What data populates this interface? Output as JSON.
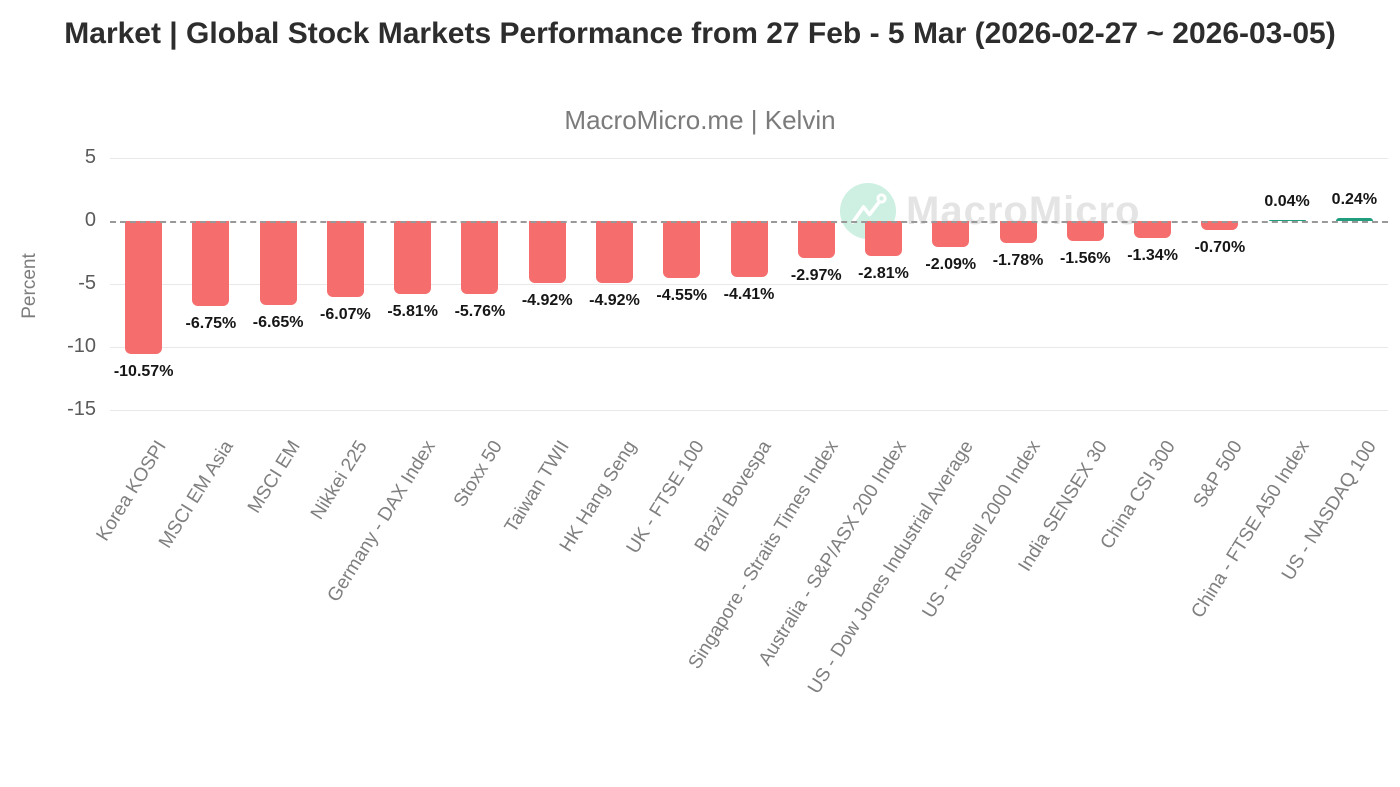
{
  "header": {
    "title": "Market | Global Stock Markets Performance from 27 Feb - 5 Mar (2026-02-27 ~ 2026-03-05)",
    "subtitle": "MacroMicro.me | Kelvin"
  },
  "watermark": {
    "icon": "macromicro-logo-icon",
    "text": "MacroMicro"
  },
  "chart_data": {
    "type": "bar",
    "title": "Market | Global Stock Markets Performance from 27 Feb - 5 Mar (2026-02-27 ~ 2026-03-05)",
    "xlabel": "",
    "ylabel": "Percent",
    "ylim": [
      -15,
      5
    ],
    "yticks": [
      5,
      0,
      -5,
      -10,
      -15
    ],
    "grid": true,
    "zero_line_style": "dashed",
    "legend_position": "none",
    "categories": [
      "Korea KOSPI",
      "MSCI EM Asia",
      "MSCI EM",
      "Nikkei 225",
      "Germany - DAX Index",
      "Stoxx 50",
      "Taiwan TWII",
      "HK Hang Seng",
      "UK - FTSE 100",
      "Brazil Bovespa",
      "Singapore - Straits Times Index",
      "Australia - S&P/ASX 200 Index",
      "US - Dow Jones Industrial Average",
      "US - Russell 2000 Index",
      "India SENSEX 30",
      "China CSI 300",
      "S&P 500",
      "China - FTSE A50 Index",
      "US - NASDAQ 100"
    ],
    "values": [
      -10.57,
      -6.75,
      -6.65,
      -6.07,
      -5.81,
      -5.76,
      -4.92,
      -4.92,
      -4.55,
      -4.41,
      -2.97,
      -2.81,
      -2.09,
      -1.78,
      -1.56,
      -1.34,
      -0.7,
      0.04,
      0.24
    ],
    "value_labels": [
      "-10.57%",
      "-6.75%",
      "-6.65%",
      "-6.07%",
      "-5.81%",
      "-5.76%",
      "-4.92%",
      "-4.92%",
      "-4.55%",
      "-4.41%",
      "-2.97%",
      "-2.81%",
      "-2.09%",
      "-1.78%",
      "-1.56%",
      "-1.34%",
      "-0.70%",
      "0.04%",
      "0.24%"
    ],
    "colors": {
      "bar_negative": "#f56d6d",
      "bar_positive": "#1f9d7d",
      "gridline": "#e9e9e9",
      "zero_line": "#999999",
      "watermark_circle": "#cdf0e2",
      "watermark_text": "#e4e4e4"
    }
  }
}
